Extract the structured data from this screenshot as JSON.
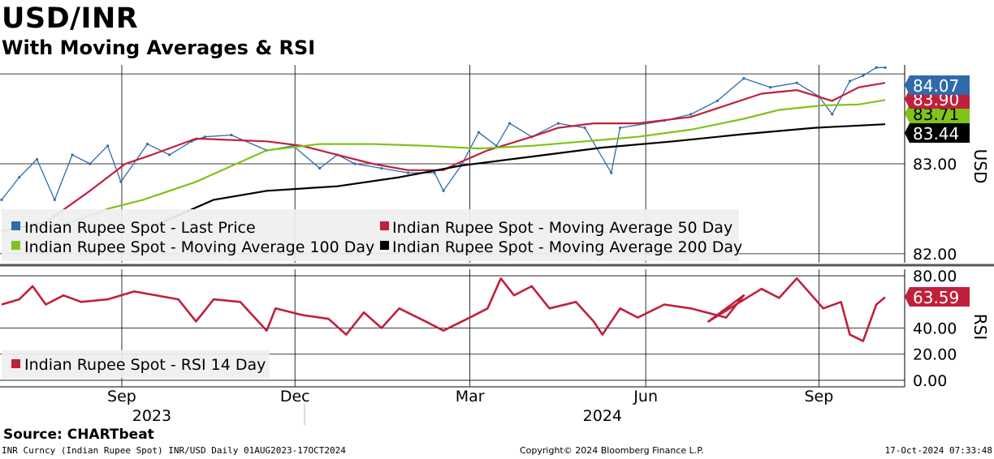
{
  "header": {
    "title": "USD/INR",
    "subtitle": "With Moving Averages & RSI"
  },
  "colors": {
    "last_price": "#2f6bab",
    "ma50": "#c0203c",
    "ma100": "#7fc31c",
    "ma200": "#000000",
    "rsi": "#c0203c"
  },
  "chart_data": [
    {
      "type": "line",
      "title": "USD/INR",
      "ylabel": "USD",
      "ylim": [
        81.9,
        84.1
      ],
      "yticks": [
        "82.00",
        "83.00"
      ],
      "x_month_labels": [
        "Sep",
        "Dec",
        "Mar",
        "Jun",
        "Sep"
      ],
      "x_year_labels": [
        "2023",
        "2024"
      ],
      "grid": true,
      "legend": [
        "Indian Rupee Spot - Last Price",
        "Indian Rupee Spot - Moving Average 50 Day",
        "Indian Rupee Spot - Moving Average 100 Day",
        "Indian Rupee Spot - Moving Average 200 Day"
      ],
      "last_values": {
        "last_price": "84.07",
        "ma50": "83.90",
        "ma100": "83.71",
        "ma200": "83.44"
      },
      "series": [
        {
          "name": "Indian Rupee Spot - Last Price",
          "key": "last_price",
          "x": [
            0,
            0.02,
            0.04,
            0.06,
            0.08,
            0.1,
            0.12,
            0.135,
            0.165,
            0.19,
            0.215,
            0.23,
            0.26,
            0.3,
            0.33,
            0.36,
            0.38,
            0.4,
            0.43,
            0.46,
            0.49,
            0.5,
            0.52,
            0.54,
            0.56,
            0.575,
            0.6,
            0.63,
            0.66,
            0.69,
            0.7,
            0.75,
            0.78,
            0.81,
            0.84,
            0.87,
            0.9,
            0.925,
            0.94,
            0.96,
            0.975,
            0.99,
            1.0
          ],
          "values": [
            82.6,
            82.85,
            83.05,
            82.6,
            83.1,
            83.0,
            83.2,
            82.8,
            83.22,
            83.1,
            83.25,
            83.3,
            83.32,
            83.15,
            83.2,
            82.95,
            83.1,
            83.0,
            82.95,
            82.9,
            82.9,
            82.7,
            82.98,
            83.35,
            83.2,
            83.45,
            83.3,
            83.45,
            83.4,
            82.9,
            83.4,
            83.48,
            83.55,
            83.7,
            83.95,
            83.85,
            83.9,
            83.75,
            83.55,
            83.92,
            83.98,
            84.07,
            84.07
          ]
        },
        {
          "name": "Indian Rupee Spot - Moving Average 50 Day",
          "key": "ma50",
          "x": [
            0,
            0.05,
            0.1,
            0.14,
            0.17,
            0.22,
            0.3,
            0.34,
            0.38,
            0.42,
            0.46,
            0.5,
            0.515,
            0.55,
            0.6,
            0.63,
            0.67,
            0.72,
            0.78,
            0.82,
            0.86,
            0.9,
            0.94,
            0.97,
            1.0
          ],
          "values": [
            82.25,
            82.35,
            82.7,
            83.0,
            83.1,
            83.28,
            83.25,
            83.2,
            83.1,
            83.0,
            82.93,
            82.93,
            83.0,
            83.15,
            83.3,
            83.4,
            83.45,
            83.45,
            83.52,
            83.65,
            83.78,
            83.82,
            83.7,
            83.85,
            83.9
          ]
        },
        {
          "name": "Indian Rupee Spot - Moving Average 100 Day",
          "key": "ma100",
          "x": [
            0.03,
            0.08,
            0.12,
            0.16,
            0.22,
            0.3,
            0.36,
            0.42,
            0.48,
            0.54,
            0.6,
            0.66,
            0.72,
            0.78,
            0.84,
            0.88,
            0.93,
            0.97,
            1.0
          ],
          "values": [
            82.25,
            82.35,
            82.5,
            82.6,
            82.8,
            83.15,
            83.22,
            83.22,
            83.2,
            83.17,
            83.2,
            83.25,
            83.3,
            83.38,
            83.5,
            83.6,
            83.65,
            83.66,
            83.71
          ]
        },
        {
          "name": "Indian Rupee Spot - Moving Average 200 Day",
          "key": "ma200",
          "x": [
            0.17,
            0.24,
            0.3,
            0.38,
            0.45,
            0.52,
            0.6,
            0.68,
            0.76,
            0.84,
            0.92,
            1.0
          ],
          "values": [
            82.3,
            82.6,
            82.7,
            82.75,
            82.85,
            82.98,
            83.08,
            83.18,
            83.25,
            83.33,
            83.4,
            83.44
          ]
        }
      ]
    },
    {
      "type": "line",
      "title": "RSI",
      "ylabel": "RSI",
      "ylim": [
        -5,
        85
      ],
      "yticks": [
        "0.00",
        "20.00",
        "40.00",
        "80.00"
      ],
      "grid": true,
      "legend": [
        "Indian Rupee Spot - RSI 14 Day"
      ],
      "last_value": "63.59",
      "series": [
        {
          "name": "Indian Rupee Spot - RSI 14 Day",
          "key": "rsi",
          "x": [
            0,
            0.02,
            0.035,
            0.05,
            0.07,
            0.09,
            0.12,
            0.15,
            0.2,
            0.22,
            0.24,
            0.27,
            0.3,
            0.31,
            0.34,
            0.37,
            0.39,
            0.41,
            0.43,
            0.45,
            0.48,
            0.5,
            0.53,
            0.55,
            0.565,
            0.58,
            0.6,
            0.62,
            0.65,
            0.67,
            0.68,
            0.7,
            0.72,
            0.75,
            0.78,
            0.82,
            0.84,
            0.8,
            0.86,
            0.88,
            0.9,
            0.93,
            0.95,
            0.96,
            0.975,
            0.99,
            1.0
          ],
          "values": [
            58,
            62,
            72,
            58,
            65,
            60,
            62,
            68,
            62,
            45,
            62,
            60,
            38,
            55,
            50,
            47,
            35,
            52,
            40,
            55,
            45,
            38,
            48,
            55,
            78,
            65,
            72,
            55,
            60,
            45,
            35,
            55,
            48,
            58,
            55,
            48,
            65,
            45,
            70,
            63,
            78,
            55,
            60,
            35,
            30,
            58,
            63.59
          ]
        }
      ]
    }
  ],
  "axes": {
    "upper_label": "USD",
    "lower_label": "RSI"
  },
  "footer": {
    "source": "Source: CHARTbeat",
    "left": "INR Curncy (Indian Rupee Spot) INR/USD  Daily 01AUG2023-17OCT2024",
    "middle": "Copyright© 2024 Bloomberg Finance L.P.",
    "right": "17-Oct-2024 07:33:48"
  }
}
